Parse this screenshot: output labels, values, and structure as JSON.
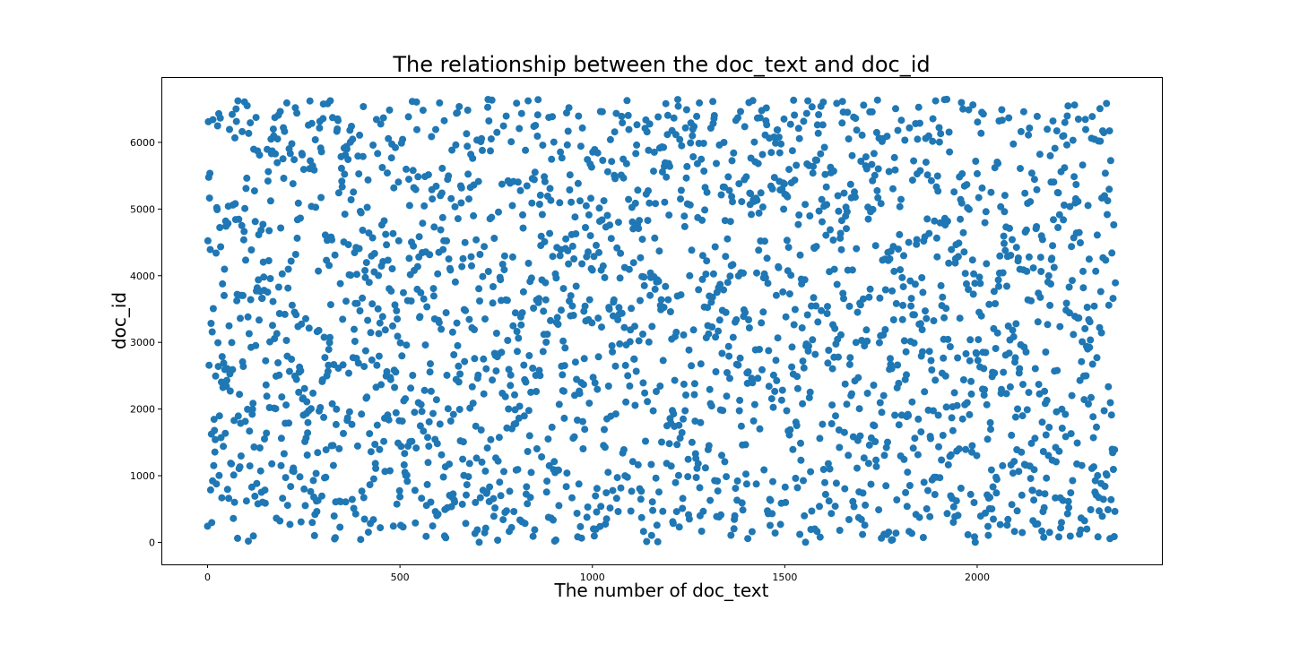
{
  "chart_data": {
    "type": "scatter",
    "title": "The relationship between the doc_text and doc_id",
    "xlabel": "The number of doc_text",
    "ylabel": "doc_id",
    "xlim": [
      -120,
      2480
    ],
    "ylim": [
      -330,
      6980
    ],
    "xticks": [
      0,
      500,
      1000,
      1500,
      2000
    ],
    "yticks": [
      0,
      1000,
      2000,
      3000,
      4000,
      5000,
      6000
    ],
    "grid": false,
    "marker_color": "#1f77b4",
    "x_count": 2360,
    "y_max": 6650,
    "x_step": 1,
    "point_stride": 1
  }
}
